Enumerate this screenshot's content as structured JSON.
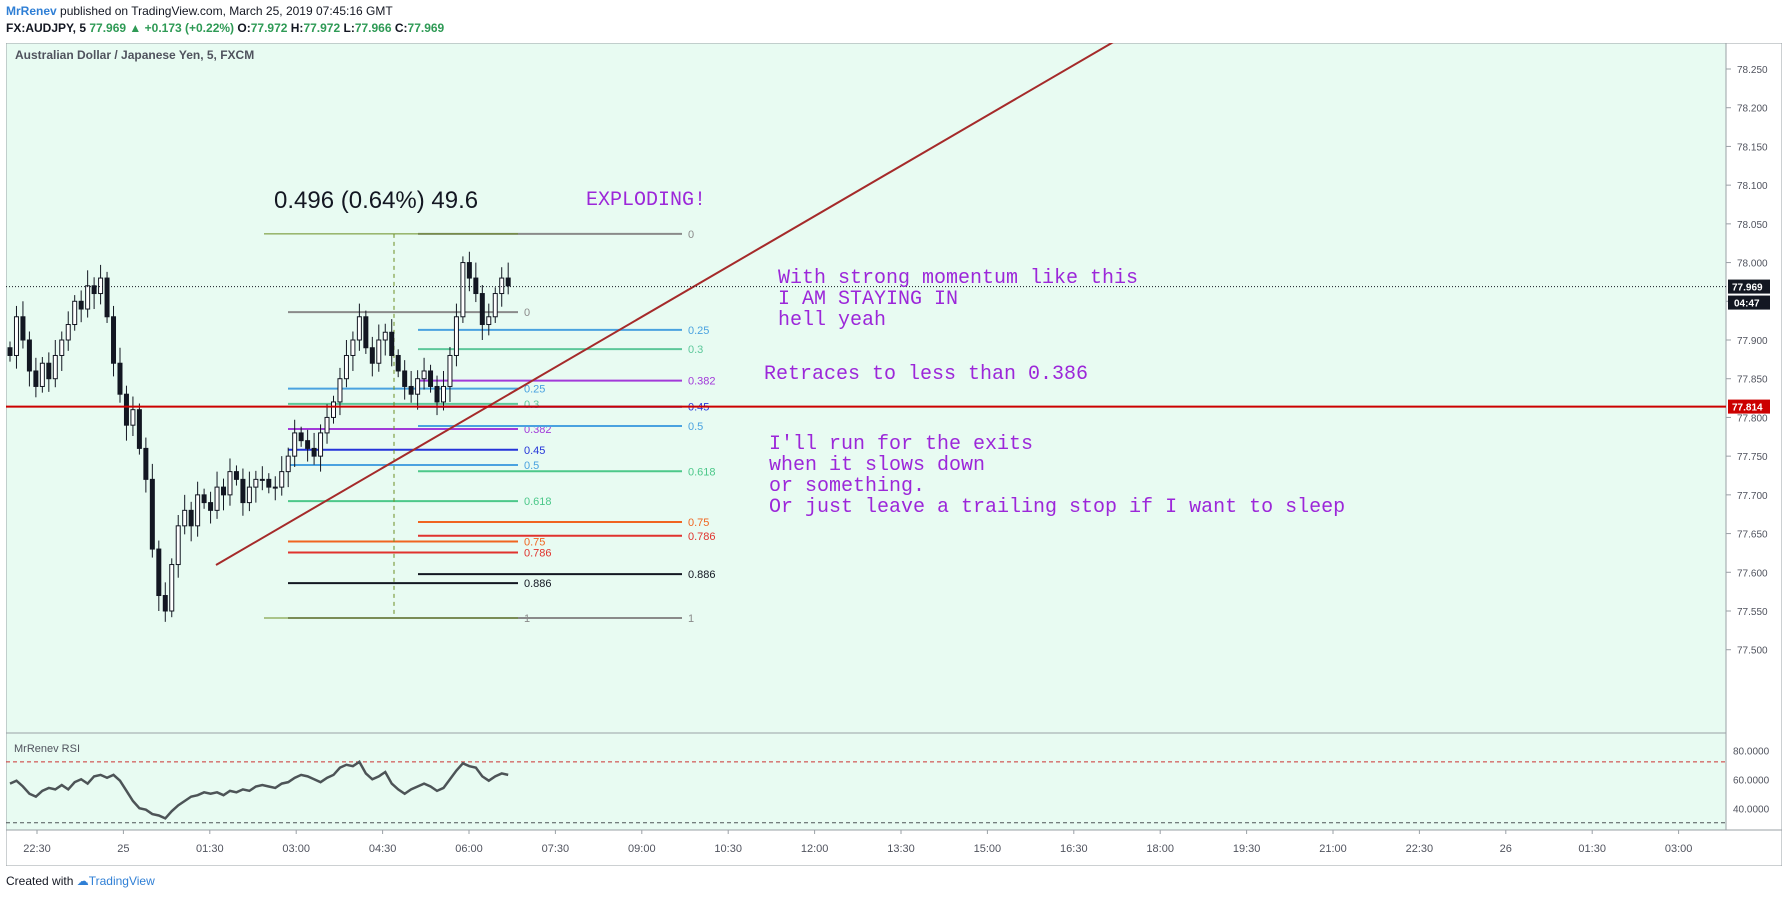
{
  "header": {
    "author": "MrRenev",
    "published": "published on TradingView.com, March 25, 2019 07:45:16 GMT"
  },
  "ohlc": {
    "symbol": "FX:AUDJPY, 5",
    "last": "77.969",
    "change": "▲ +0.173 (+0.22%)",
    "o_label": "O:",
    "o": "77.972",
    "h_label": "H:",
    "h": "77.972",
    "l_label": "L:",
    "l": "77.966",
    "c_label": "C:",
    "c": "77.969"
  },
  "footer": {
    "created": "Created with",
    "brand": "TradingView"
  },
  "colors": {
    "background": "#e8fbf2",
    "up": "#ffffff",
    "down": "#131722",
    "trendline": "#a52a2a",
    "horizontal": "#cc0000",
    "annotation": "#9c27d9",
    "rsi": "#4d5457",
    "rsi_band": "#cc3333",
    "fib_0": "#8a8a8a",
    "fib_025": "#4aa2e0",
    "fib_03": "#5cc89a",
    "fib_0382": "#a23ad9",
    "fib_045": "#2434d9",
    "fib_05": "#4aa2e0",
    "fib_0618": "#4cc88a",
    "fib_075": "#f06520",
    "fib_0786": "#e0332e",
    "fib_0886": "#131722",
    "fib_1": "#8a8a8a"
  },
  "chart_data": {
    "type": "candlestick",
    "title": "Australian Dollar / Japanese Yen, 5, FXCM",
    "price_axis": {
      "ylim": [
        77.5,
        78.3
      ],
      "ticks": [
        "78.250",
        "78.200",
        "78.150",
        "78.100",
        "78.050",
        "78.000",
        "77.950",
        "77.900",
        "77.850",
        "77.800",
        "77.750",
        "77.700",
        "77.650",
        "77.600",
        "77.550",
        "77.500"
      ],
      "last_price_label": "77.969",
      "countdown_label": "04:47",
      "horizontal_line_label": "77.814"
    },
    "time_axis": {
      "ticks": [
        "22:30",
        "25",
        "01:30",
        "03:00",
        "04:30",
        "06:00",
        "07:30",
        "09:00",
        "10:30",
        "12:00",
        "13:30",
        "15:00",
        "16:30",
        "18:00",
        "19:30",
        "21:00",
        "22:30",
        "26",
        "01:30",
        "03:00"
      ]
    },
    "close_series": [
      77.88,
      77.93,
      77.9,
      77.86,
      77.84,
      77.87,
      77.85,
      77.88,
      77.9,
      77.92,
      77.95,
      77.94,
      77.97,
      77.96,
      77.98,
      77.93,
      77.87,
      77.83,
      77.79,
      77.81,
      77.76,
      77.72,
      77.63,
      77.57,
      77.55,
      77.61,
      77.66,
      77.68,
      77.66,
      77.7,
      77.69,
      77.68,
      77.71,
      77.7,
      77.73,
      77.72,
      77.69,
      77.71,
      77.72,
      77.72,
      77.71,
      77.71,
      77.73,
      77.75,
      77.78,
      77.77,
      77.76,
      77.75,
      77.78,
      77.8,
      77.82,
      77.85,
      77.88,
      77.9,
      77.93,
      77.89,
      77.87,
      77.9,
      77.91,
      77.88,
      77.86,
      77.84,
      77.83,
      77.85,
      77.86,
      77.84,
      77.82,
      77.84,
      77.88,
      77.93,
      78.0,
      77.98,
      77.96,
      77.92,
      77.93,
      77.96,
      77.98,
      77.97
    ],
    "rsi": {
      "label": "MrRenev RSI",
      "ticks": [
        "80.0000",
        "60.0000",
        "40.0000"
      ],
      "upper_band": 72,
      "lower_band": 30,
      "ylim": [
        25,
        85
      ],
      "values": [
        57,
        59,
        55,
        50,
        48,
        52,
        54,
        53,
        56,
        53,
        58,
        60,
        57,
        62,
        63,
        61,
        63,
        59,
        52,
        45,
        40,
        39,
        36,
        35,
        33,
        38,
        42,
        45,
        48,
        49,
        51,
        50,
        51,
        49,
        52,
        51,
        53,
        52,
        55,
        56,
        55,
        54,
        57,
        58,
        61,
        63,
        62,
        60,
        58,
        61,
        63,
        68,
        70,
        69,
        72,
        64,
        60,
        62,
        65,
        57,
        53,
        50,
        53,
        55,
        57,
        55,
        52,
        54,
        60,
        66,
        71,
        69,
        68,
        62,
        59,
        62,
        64,
        63
      ]
    },
    "measure_label": "0.496 (0.64%) 49.6",
    "fib_left": {
      "price_0": 77.936,
      "price_1": 77.541,
      "levels": [
        {
          "ratio": 0,
          "label": "0"
        },
        {
          "ratio": 0.25,
          "label": "0.25"
        },
        {
          "ratio": 0.3,
          "label": "0.3"
        },
        {
          "ratio": 0.382,
          "label": "0.382"
        },
        {
          "ratio": 0.45,
          "label": "0.45"
        },
        {
          "ratio": 0.5,
          "label": "0.5"
        },
        {
          "ratio": 0.618,
          "label": "0.618"
        },
        {
          "ratio": 0.75,
          "label": "0.75"
        },
        {
          "ratio": 0.786,
          "label": "0.786"
        },
        {
          "ratio": 0.886,
          "label": "0.886"
        },
        {
          "ratio": 1,
          "label": "1"
        }
      ]
    },
    "fib_right": {
      "price_0": 78.037,
      "price_1": 77.541,
      "levels": [
        {
          "ratio": 0,
          "label": "0"
        },
        {
          "ratio": 0.25,
          "label": "0.25"
        },
        {
          "ratio": 0.3,
          "label": "0.3"
        },
        {
          "ratio": 0.382,
          "label": "0.382"
        },
        {
          "ratio": 0.45,
          "label": "0.45"
        },
        {
          "ratio": 0.5,
          "label": "0.5"
        },
        {
          "ratio": 0.618,
          "label": "0.618"
        },
        {
          "ratio": 0.75,
          "label": "0.75"
        },
        {
          "ratio": 0.786,
          "label": "0.786"
        },
        {
          "ratio": 0.886,
          "label": "0.886"
        },
        {
          "ratio": 1,
          "label": "1"
        }
      ]
    },
    "annotations": {
      "exploding": "EXPLODING!",
      "momentum_1": "With strong momentum like this",
      "momentum_2": "I AM STAYING IN",
      "momentum_3": "hell yeah",
      "retrace": "Retraces to less than 0.386",
      "exit_1": "I'll run for the exits",
      "exit_2": "when it slows down",
      "exit_3": "or something.",
      "exit_4": "Or just leave a trailing stop if I want to sleep"
    }
  }
}
